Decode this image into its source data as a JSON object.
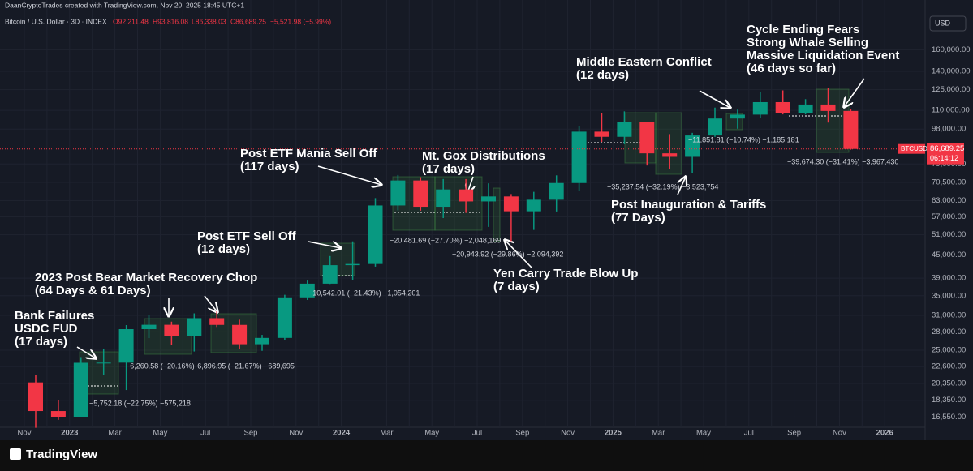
{
  "header": {
    "credit": "DaanCryptoTrades created with TradingView.com, Nov 20, 2025 18:45 UTC+1",
    "symbol_line": "Bitcoin / U.S. Dollar · 3D · INDEX",
    "open": "O92,211.48",
    "high": "H93,816.08",
    "low": "L86,338.03",
    "close": "C86,689.25",
    "change": "−5,521.98 (−5.99%)"
  },
  "currency": "USD",
  "footer": {
    "brand": "TradingView"
  },
  "chart_data": {
    "type": "candlestick",
    "log_scale": true,
    "grid": true,
    "up_color": "#089981",
    "down_color": "#f23645",
    "categories": [
      "Nov",
      null,
      "2023",
      null,
      "Mar",
      null,
      "May",
      null,
      "Jul",
      null,
      "Sep",
      null,
      "Nov",
      null,
      "2024",
      null,
      "Mar",
      null,
      "May",
      null,
      "Jul",
      null,
      "Sep",
      null,
      "Nov",
      null,
      "2025",
      null,
      "Mar",
      null,
      "May",
      null,
      "Jul",
      null,
      "Sep",
      null,
      "Nov",
      null,
      "2026"
    ],
    "open": [
      20490,
      17165,
      16540,
      23130,
      23150,
      28470,
      29250,
      27220,
      30470,
      29230,
      25940,
      26970,
      34650,
      37710,
      42270,
      42580,
      61130,
      71330,
      60640,
      67490,
      62680,
      64630,
      58970,
      63330,
      70220,
      96450,
      93430,
      102410,
      84350,
      82550,
      94200,
      104600,
      107150,
      115750,
      108250,
      114050,
      109600,
      null,
      null
    ],
    "high": [
      21450,
      18390,
      23960,
      25250,
      29190,
      31000,
      29820,
      31390,
      31800,
      30180,
      27480,
      35200,
      38430,
      44730,
      48970,
      63970,
      73780,
      72800,
      71980,
      71950,
      70080,
      65590,
      66500,
      73620,
      99650,
      108350,
      109350,
      102500,
      95000,
      95750,
      111900,
      110500,
      123200,
      124450,
      117900,
      126200,
      111200,
      null,
      null
    ],
    "low": [
      15480,
      16260,
      16500,
      21400,
      19550,
      26940,
      25810,
      24800,
      28860,
      25170,
      24900,
      26550,
      34100,
      37640,
      38550,
      41890,
      59320,
      59190,
      56550,
      58400,
      53550,
      49050,
      52550,
      58900,
      66830,
      90500,
      89260,
      78250,
      76600,
      74500,
      93400,
      98200,
      105100,
      107300,
      107300,
      102000,
      86300,
      null,
      null
    ],
    "close": [
      17165,
      16540,
      23130,
      23150,
      28470,
      29250,
      27220,
      30470,
      29230,
      25940,
      26970,
      34650,
      37710,
      42270,
      42580,
      61130,
      71330,
      60640,
      67490,
      62680,
      64630,
      58970,
      63330,
      70220,
      96450,
      93430,
      102410,
      84350,
      82550,
      94200,
      104600,
      107150,
      115750,
      108250,
      114050,
      109600,
      86689.25,
      null,
      null
    ],
    "ylim": [
      15300,
      209000
    ],
    "yticks": [
      {
        "value": 160000,
        "label": "160,000.00"
      },
      {
        "value": 140000,
        "label": "140,000.00"
      },
      {
        "value": 125000,
        "label": "125,000.00"
      },
      {
        "value": 110000,
        "label": "110,000.00"
      },
      {
        "value": 98000,
        "label": "98,000.00"
      },
      {
        "value": 79000,
        "label": "79,000.00"
      },
      {
        "value": 70500,
        "label": "70,500.00"
      },
      {
        "value": 63000,
        "label": "63,000.00"
      },
      {
        "value": 57000,
        "label": "57,000.00"
      },
      {
        "value": 51000,
        "label": "51,000.00"
      },
      {
        "value": 45000,
        "label": "45,000.00"
      },
      {
        "value": 39000,
        "label": "39,000.00"
      },
      {
        "value": 35000,
        "label": "35,000.00"
      },
      {
        "value": 31000,
        "label": "31,000.00"
      },
      {
        "value": 28000,
        "label": "28,000.00"
      },
      {
        "value": 25000,
        "label": "25,000.00"
      },
      {
        "value": 22600,
        "label": "22,600.00"
      },
      {
        "value": 20350,
        "label": "20,350.00"
      },
      {
        "value": 18350,
        "label": "18,350.00"
      },
      {
        "value": 16550,
        "label": "16,550.00"
      }
    ],
    "last_price": {
      "value": 86689.25,
      "label": "86,689.25",
      "symbol": "BTCUSD",
      "countdown": "06:14:12"
    },
    "annotations": [
      {
        "lines": [
          "Bank Failures",
          "USDC FUD",
          "(17 days)"
        ]
      },
      {
        "lines": [
          "2023 Post Bear Market Recovery Chop",
          "(64 Days & 61 Days)"
        ]
      },
      {
        "lines": [
          "Post ETF Sell Off",
          "(12 days)"
        ]
      },
      {
        "lines": [
          "Post ETF Mania Sell Off",
          "(117 days)"
        ]
      },
      {
        "lines": [
          "Mt. Gox Distributions",
          "(17 days)"
        ]
      },
      {
        "lines": [
          "Yen Carry Trade Blow Up",
          "(7 days)"
        ]
      },
      {
        "lines": [
          "Middle Eastern Conflict",
          "(12 days)"
        ]
      },
      {
        "lines": [
          "Post Inauguration & Tariffs",
          "(77 Days)"
        ]
      },
      {
        "lines": [
          "Cycle Ending Fears",
          "Strong Whale Selling",
          "Massive Liquidation Event",
          "(46 days so far)"
        ]
      }
    ],
    "measurements": [
      "−5,752.18 (−22.75%) −575,218",
      "−6,260.58 (−20.16%)",
      "−6,896.95 (−21.67%) −689,695",
      "−10,542.01 (−21.43%) −1,054,201",
      "−20,481.69 (−27.70%) −2,048,169",
      "−20,943.92 (−29.86%) −2,094,392",
      "−35,237.54 (−32.19%) −3,523,754",
      "−11,851.81 (−10.74%) −1,185,181",
      "−39,674.30 (−31.41%) −3,967,430"
    ]
  }
}
